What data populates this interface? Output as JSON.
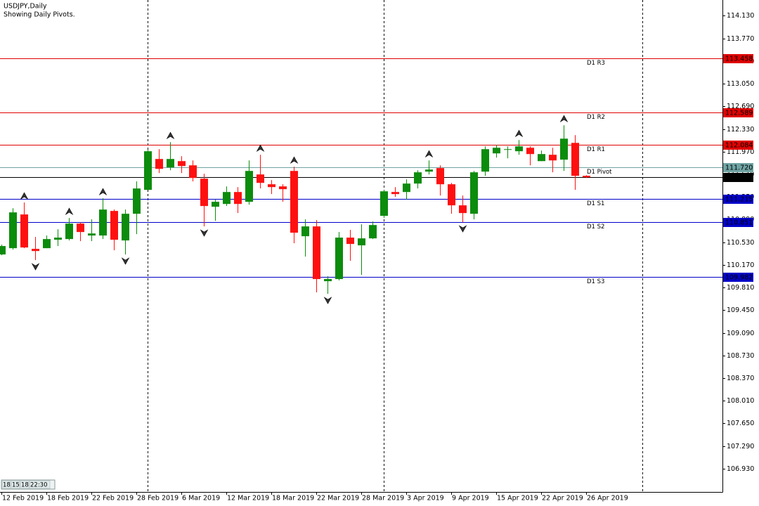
{
  "chart_data": {
    "type": "candlestick",
    "title": "USDJPY,Daily",
    "subtitle": "Showing Daily Pivots.",
    "categories": [
      "12 Feb 2019",
      null,
      null,
      null,
      "18 Feb 2019",
      null,
      null,
      null,
      "22 Feb 2019",
      null,
      null,
      null,
      "28 Feb 2019",
      null,
      null,
      null,
      "6 Mar 2019",
      null,
      null,
      null,
      "12 Mar 2019",
      null,
      null,
      null,
      "18 Mar 2019",
      null,
      null,
      null,
      "22 Mar 2019",
      null,
      null,
      null,
      "28 Mar 2019",
      null,
      null,
      null,
      "3 Apr 2019",
      null,
      null,
      null,
      "9 Apr 2019",
      null,
      null,
      null,
      "15 Apr 2019",
      null,
      null,
      null,
      "22 Apr 2019",
      null,
      null,
      null,
      "26 Apr 2019"
    ],
    "open": [
      110.335,
      110.435,
      110.971,
      110.424,
      110.435,
      110.569,
      110.58,
      110.826,
      110.636,
      110.636,
      111.027,
      110.558,
      110.982,
      111.362,
      111.853,
      111.719,
      111.819,
      111.752,
      111.54,
      111.094,
      111.138,
      111.328,
      111.172,
      111.607,
      111.451,
      111.417,
      111.663,
      110.625,
      110.781,
      109.91,
      109.944,
      110.603,
      110.48,
      110.591,
      110.949,
      111.328,
      111.328,
      111.462,
      111.652,
      111.708,
      111.451,
      111.116,
      110.982,
      111.652,
      111.942,
      111.998,
      111.976,
      112.031,
      111.819,
      111.92,
      111.842,
      112.109,
      111.585
    ],
    "high": [
      110.491,
      111.071,
      111.161,
      110.614,
      110.636,
      110.736,
      110.915,
      110.848,
      110.893,
      111.228,
      111.049,
      111.049,
      111.496,
      111.998,
      112.009,
      112.121,
      111.897,
      111.83,
      111.618,
      111.205,
      111.417,
      111.406,
      111.83,
      111.92,
      111.518,
      111.451,
      111.73,
      110.893,
      110.882,
      109.989,
      110.692,
      110.725,
      110.815,
      110.859,
      111.362,
      111.406,
      111.529,
      111.674,
      111.83,
      111.752,
      111.473,
      111.272,
      111.663,
      112.054,
      112.076,
      112.054,
      112.154,
      112.054,
      111.987,
      112.031,
      112.389,
      112.232,
      111.596
    ],
    "low": [
      110.323,
      110.413,
      110.435,
      110.245,
      110.435,
      110.469,
      110.558,
      110.547,
      110.547,
      110.58,
      110.402,
      110.335,
      110.658,
      111.362,
      111.629,
      111.674,
      111.629,
      111.496,
      110.781,
      110.87,
      111.105,
      110.993,
      111.127,
      111.384,
      111.295,
      111.172,
      110.513,
      110.301,
      109.732,
      109.709,
      109.922,
      110.234,
      110.011,
      110.58,
      110.915,
      111.25,
      111.205,
      111.384,
      111.607,
      111.272,
      110.982,
      110.848,
      110.893,
      111.585,
      111.875,
      111.864,
      111.92,
      111.752,
      111.819,
      111.641,
      111.663,
      111.362,
      111.551
    ],
    "close": [
      110.469,
      111.004,
      110.446,
      110.39,
      110.58,
      110.603,
      110.826,
      110.692,
      110.669,
      111.049,
      110.569,
      110.982,
      111.384,
      111.976,
      111.696,
      111.853,
      111.741,
      111.551,
      111.105,
      111.172,
      111.328,
      111.138,
      111.663,
      111.473,
      111.406,
      111.373,
      110.681,
      110.781,
      109.944,
      109.944,
      110.603,
      110.502,
      110.591,
      110.803,
      111.339,
      111.295,
      111.462,
      111.641,
      111.685,
      111.451,
      111.116,
      110.993,
      111.641,
      112.009,
      112.031,
      112.009,
      112.054,
      111.931,
      111.931,
      111.83,
      112.176,
      111.585,
      111.563
    ],
    "up_color": "#0c8c0c",
    "down_color": "#ff1010",
    "ylim": [
      106.56,
      114.38
    ],
    "yticks": [
      {
        "value": 114.13,
        "label": "114.130"
      },
      {
        "value": 113.77,
        "label": "113.770"
      },
      {
        "value": 113.41,
        "label": "113.410"
      },
      {
        "value": 113.05,
        "label": "113.050"
      },
      {
        "value": 112.69,
        "label": "112.690"
      },
      {
        "value": 112.33,
        "label": "112.330"
      },
      {
        "value": 111.97,
        "label": "111.970"
      },
      {
        "value": 111.61,
        "label": "111.610"
      },
      {
        "value": 111.25,
        "label": "111.250"
      },
      {
        "value": 110.89,
        "label": "110.890"
      },
      {
        "value": 110.53,
        "label": "110.530"
      },
      {
        "value": 110.17,
        "label": "110.170"
      },
      {
        "value": 109.81,
        "label": "109.810"
      },
      {
        "value": 109.45,
        "label": "109.450"
      },
      {
        "value": 109.09,
        "label": "109.090"
      },
      {
        "value": 108.73,
        "label": "108.730"
      },
      {
        "value": 108.37,
        "label": "108.370"
      },
      {
        "value": 108.01,
        "label": "108.010"
      },
      {
        "value": 107.65,
        "label": "107.650"
      },
      {
        "value": 107.29,
        "label": "107.290"
      },
      {
        "value": 106.93,
        "label": "106.930"
      }
    ],
    "pivots": {
      "names": [
        "D1 R3",
        "D1 R2",
        "D1 R1",
        "D1 Pivot",
        "D1 S1",
        "D1 S2",
        "D1 S3"
      ],
      "values": [
        113.458,
        112.589,
        112.084,
        111.72,
        111.215,
        110.851,
        109.982
      ],
      "value_labels": [
        "113.458",
        "112.589",
        "112.084",
        "111.720",
        "111.215",
        "110.851",
        "109.982"
      ],
      "colors": [
        "#e00000",
        "#e00000",
        "#e00000",
        "#6fa3a3",
        "#0000c8",
        "#0000c8",
        "#0000c8"
      ]
    },
    "last_price": 111.563,
    "session_labels": [
      "18:",
      "15:",
      "18:",
      "22:30"
    ]
  }
}
